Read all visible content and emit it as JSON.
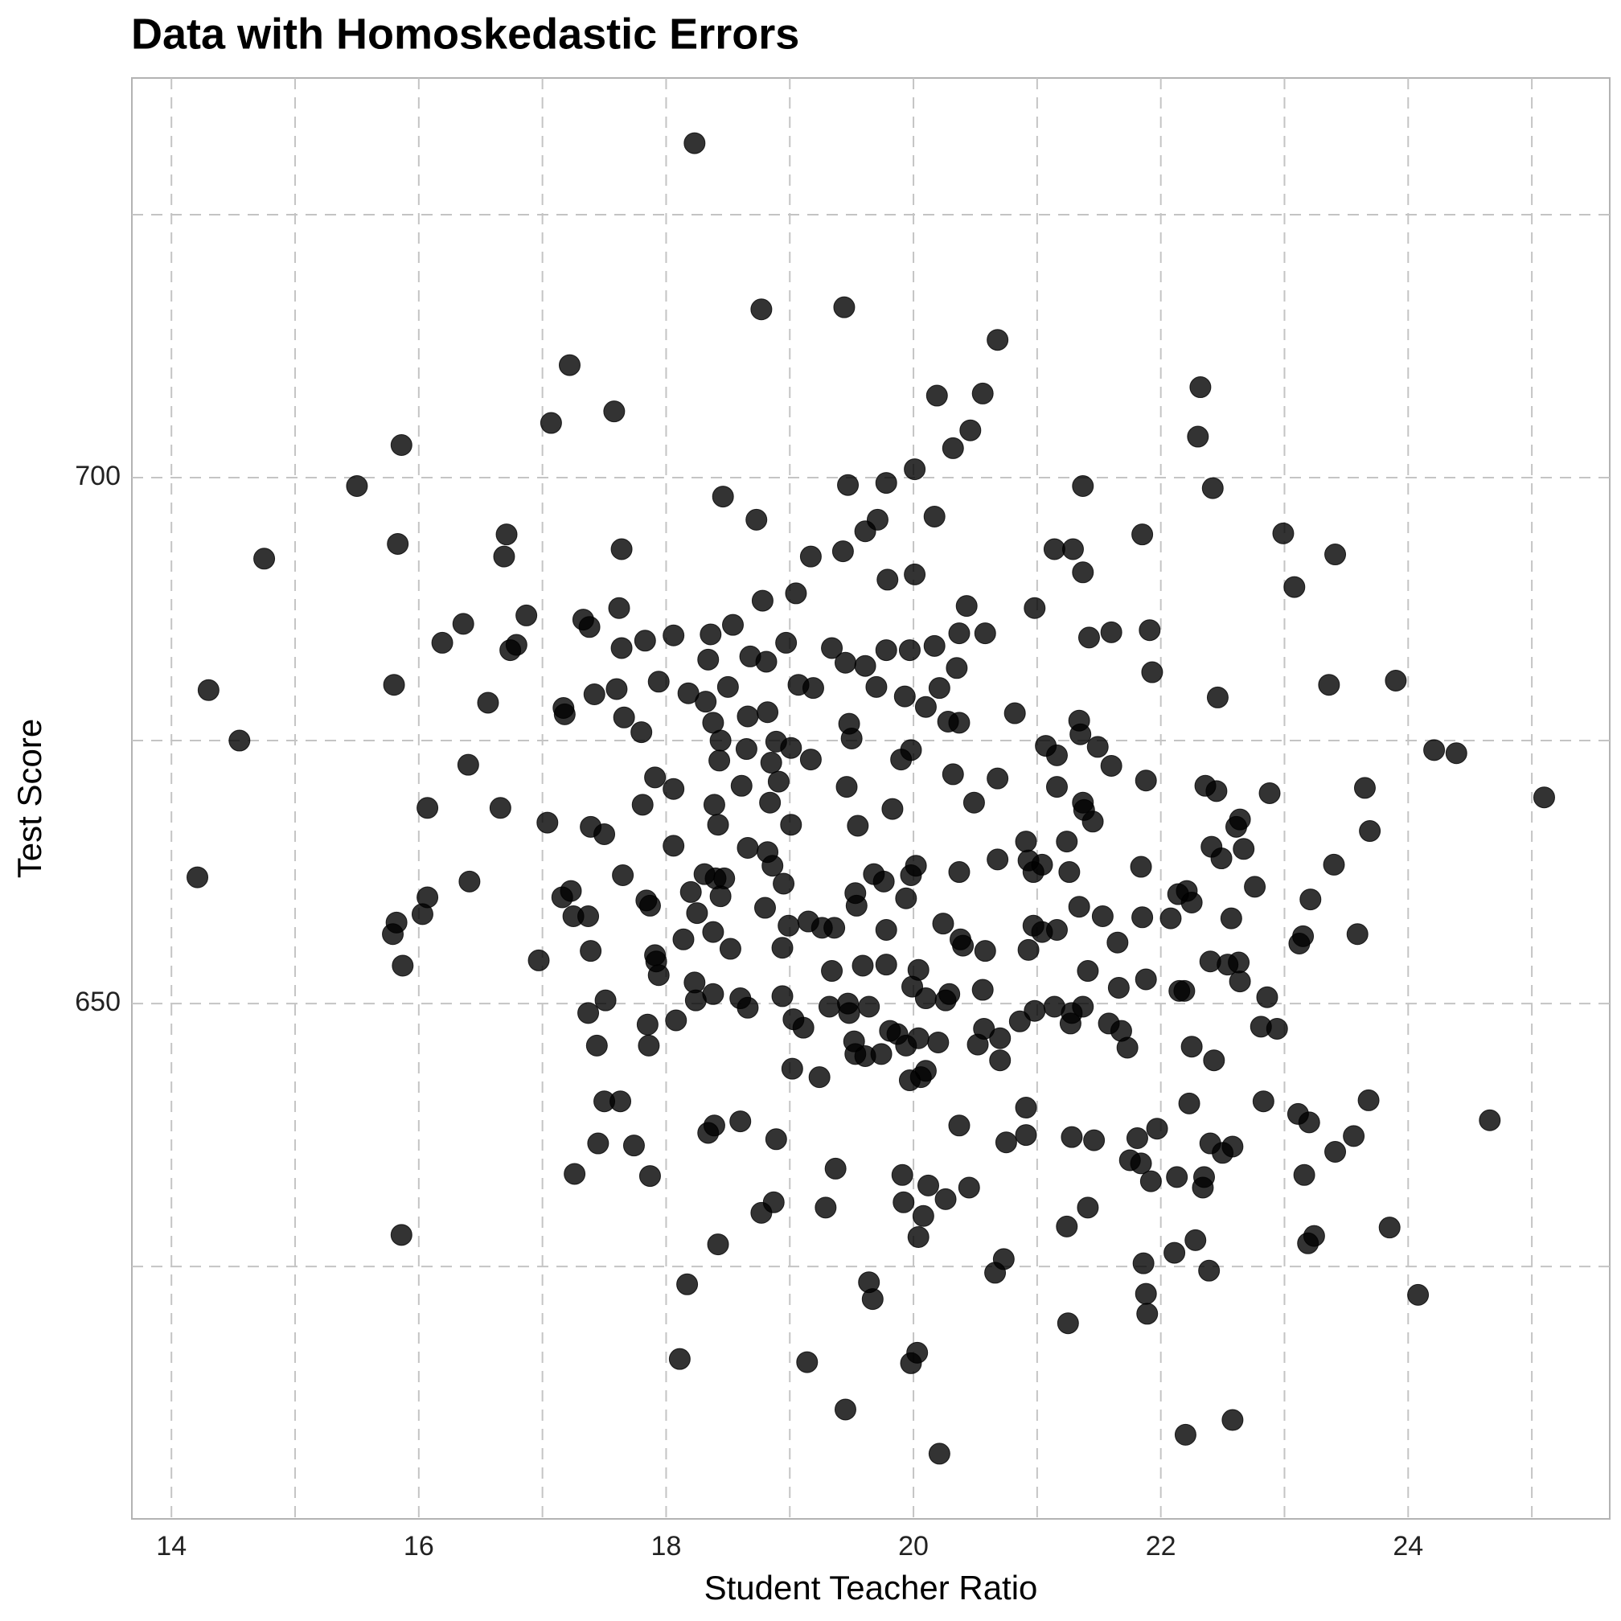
{
  "chart_data": {
    "type": "scatter",
    "title": "Data with Homoskedastic Errors",
    "x_label": "Student Teacher Ratio",
    "y_label": "Test Score",
    "color": "#000000",
    "opacity": 0.8,
    "grid": true,
    "xlim": [
      13.68,
      25.63
    ],
    "ylim": [
      601,
      738
    ],
    "xticks": [
      14,
      16,
      18,
      20,
      22,
      24
    ],
    "yticks": [
      650,
      700
    ],
    "x_minor_ticks": [
      15,
      17,
      19,
      21,
      23,
      25
    ],
    "y_minor_ticks": [
      625,
      675,
      725
    ],
    "x": [
      18.23,
      18.77,
      19.44,
      20.68,
      17.22,
      22.32,
      20.19,
      20.56,
      17.58,
      17.07,
      20.46,
      15.86,
      20.32,
      22.3,
      20.01,
      15.5,
      19.47,
      19.78,
      21.37,
      22.42,
      18.46,
      18.73,
      19.71,
      20.17,
      19.61,
      15.83,
      16.71,
      17.64,
      21.85,
      22.99,
      14.75,
      16.69,
      19.17,
      19.43,
      21.14,
      21.29,
      23.41,
      20.01,
      19.79,
      21.37,
      23.08,
      19.05,
      18.78,
      17.62,
      20.98,
      20.43,
      16.87,
      16.36,
      17.33,
      17.38,
      18.54,
      16.19,
      16.79,
      16.74,
      17.83,
      17.64,
      18.06,
      18.36,
      18.97,
      20.37,
      20.58,
      21.42,
      21.6,
      21.91,
      19.34,
      19.97,
      20.17,
      19.78,
      18.34,
      18.68,
      18.81,
      19.45,
      19.61,
      20.35,
      21.93,
      14.3,
      15.8,
      17.94,
      17.6,
      17.42,
      18.18,
      18.5,
      19.07,
      19.19,
      19.7,
      19.93,
      20.21,
      22.46,
      23.36,
      23.9,
      16.56,
      17.17,
      17.18,
      18.32,
      18.82,
      18.66,
      20.1,
      17.66,
      18.38,
      20.28,
      20.37,
      20.82,
      21.34,
      19.48,
      14.55,
      17.8,
      18.44,
      18.65,
      18.89,
      19.01,
      19.5,
      19.98,
      21.07,
      21.16,
      21.35,
      21.49,
      24.21,
      24.39,
      16.4,
      18.43,
      18.85,
      19.17,
      19.9,
      21.6,
      17.91,
      18.91,
      20.32,
      20.68,
      21.88,
      22.36,
      23.65,
      18.06,
      18.61,
      19.46,
      21.16,
      22.45,
      22.88,
      16.07,
      16.66,
      17.81,
      18.39,
      18.84,
      19.83,
      20.49,
      21.37,
      21.38,
      25.1,
      17.04,
      17.39,
      17.5,
      18.42,
      19.01,
      19.55,
      21.45,
      22.64,
      22.61,
      23.69,
      18.06,
      18.66,
      20.91,
      21.24,
      22.41,
      22.49,
      22.67,
      20.68,
      18.82,
      20.93,
      21.04,
      14.21,
      17.65,
      18.31,
      18.4,
      18.47,
      18.86,
      19.68,
      19.76,
      19.98,
      20.02,
      20.37,
      20.97,
      21.26,
      21.84,
      23.4,
      16.41,
      18.95,
      22.76,
      16.07,
      17.16,
      17.23,
      18.2,
      18.44,
      19.53,
      19.94,
      22.14,
      22.21,
      22.25,
      23.21,
      16.03,
      17.25,
      17.37,
      17.84,
      17.87,
      18.25,
      18.8,
      19.54,
      21.34,
      21.53,
      21.85,
      22.08,
      22.57,
      15.82,
      15.79,
      18.99,
      19.15,
      19.26,
      19.36,
      19.78,
      20.24,
      20.97,
      21.04,
      21.16,
      23.59,
      23.15,
      23.12,
      18.14,
      18.38,
      18.52,
      18.94,
      20.38,
      20.4,
      20.58,
      20.93,
      21.65,
      17.39,
      16.97,
      17.91,
      17.92,
      15.87,
      17.94,
      19.59,
      19.78,
      19.34,
      20.04,
      21.41,
      22.4,
      22.54,
      22.63,
      22.64,
      21.88,
      18.23,
      19.99,
      20.56,
      21.66,
      22.15,
      22.19,
      17.51,
      18.24,
      18.38,
      18.6,
      18.66,
      18.94,
      19.32,
      19.47,
      19.48,
      19.64,
      20.1,
      20.26,
      20.29,
      21.14,
      20.98,
      21.37,
      21.28,
      22.86,
      17.37,
      18.08,
      17.85,
      19.03,
      19.11,
      20.86,
      21.27,
      21.58,
      20.57,
      19.81,
      19.87,
      20.04,
      21.68,
      22.81,
      22.94,
      20.7,
      17.44,
      17.86,
      19.52,
      19.94,
      20.2,
      20.52,
      21.73,
      22.25,
      19.53,
      19.61,
      19.74,
      20.7,
      22.43,
      19.02,
      20.1,
      19.24,
      19.97,
      20.06,
      17.5,
      17.63,
      22.23,
      23.68,
      22.83,
      20.91,
      24.66,
      23.11,
      23.2,
      18.6,
      18.39,
      18.34,
      20.37,
      20.91,
      18.89,
      17.45,
      17.74,
      20.75,
      21.28,
      21.46,
      21.81,
      21.97,
      22.4,
      22.5,
      22.58,
      23.56,
      23.41,
      21.75,
      21.84,
      21.92,
      22.13,
      22.35,
      22.34,
      23.16,
      19.37,
      17.26,
      17.87,
      19.91,
      20.12,
      20.45,
      19.92,
      20.26,
      18.87,
      18.77,
      19.29,
      20.08,
      21.41,
      21.24,
      15.86,
      20.04,
      23.85,
      22.28,
      23.24,
      23.19,
      18.42,
      22.11,
      20.73,
      20.66,
      21.86,
      22.39,
      18.17,
      19.64,
      19.67,
      21.88,
      24.08,
      21.89,
      21.25,
      18.11,
      19.14,
      20.03,
      19.98,
      19.45,
      22.58,
      22.2,
      20.21
    ],
    "values": [
      731.8,
      716.0,
      716.2,
      713.1,
      710.7,
      708.6,
      707.8,
      708.0,
      706.3,
      705.2,
      704.5,
      703.1,
      702.8,
      703.9,
      700.8,
      699.2,
      699.3,
      699.5,
      699.2,
      699.0,
      698.2,
      696.0,
      696.0,
      696.3,
      694.9,
      693.7,
      694.6,
      693.2,
      694.6,
      694.7,
      692.3,
      692.5,
      692.5,
      693.0,
      693.2,
      693.2,
      692.7,
      690.8,
      690.3,
      691.0,
      689.6,
      689.0,
      688.3,
      687.6,
      687.6,
      687.8,
      686.9,
      686.1,
      686.5,
      685.8,
      686.0,
      684.3,
      684.1,
      683.6,
      684.5,
      683.8,
      685.0,
      685.1,
      684.3,
      685.2,
      685.2,
      684.8,
      685.3,
      685.5,
      683.8,
      683.6,
      684.0,
      683.6,
      682.7,
      683.0,
      682.5,
      682.4,
      682.1,
      681.9,
      681.5,
      679.8,
      680.3,
      680.6,
      679.9,
      679.4,
      679.5,
      680.1,
      680.3,
      680.0,
      680.1,
      679.2,
      680.0,
      679.1,
      680.3,
      680.7,
      678.6,
      678.1,
      677.5,
      678.7,
      677.7,
      677.3,
      678.2,
      677.2,
      676.7,
      676.8,
      676.7,
      677.6,
      676.9,
      676.6,
      675.0,
      675.8,
      675.0,
      674.2,
      674.9,
      674.3,
      675.2,
      674.1,
      674.5,
      673.6,
      675.6,
      674.4,
      674.1,
      673.8,
      672.7,
      673.1,
      672.9,
      673.2,
      673.2,
      672.6,
      671.5,
      671.1,
      671.8,
      671.4,
      671.2,
      670.7,
      670.5,
      670.4,
      670.7,
      670.6,
      670.6,
      670.2,
      670.0,
      668.6,
      668.6,
      668.9,
      668.9,
      669.1,
      668.5,
      669.1,
      669.1,
      668.4,
      669.6,
      667.2,
      666.8,
      666.1,
      667.0,
      667.0,
      666.9,
      667.3,
      667.5,
      666.8,
      666.4,
      665.0,
      664.8,
      665.4,
      665.4,
      664.9,
      663.8,
      664.7,
      663.7,
      664.4,
      663.6,
      663.2,
      662.0,
      662.2,
      662.3,
      661.9,
      661.9,
      663.1,
      662.3,
      661.6,
      662.2,
      663.1,
      662.5,
      662.5,
      662.5,
      663.0,
      663.2,
      661.6,
      661.4,
      661.1,
      660.1,
      660.1,
      660.7,
      660.6,
      660.2,
      660.5,
      660.0,
      660.4,
      660.7,
      659.6,
      659.9,
      658.5,
      658.3,
      658.3,
      659.8,
      659.3,
      658.6,
      659.1,
      659.3,
      659.2,
      658.3,
      658.2,
      658.1,
      658.1,
      657.7,
      656.6,
      657.4,
      657.8,
      657.2,
      657.2,
      657.0,
      657.6,
      657.4,
      656.8,
      657.0,
      656.6,
      656.4,
      655.7,
      656.1,
      656.8,
      655.2,
      655.3,
      656.1,
      655.5,
      655.0,
      655.1,
      655.8,
      655.0,
      654.1,
      654.6,
      654.0,
      653.6,
      652.7,
      653.6,
      653.7,
      653.1,
      653.2,
      653.1,
      654.0,
      653.7,
      653.9,
      652.1,
      652.3,
      652.0,
      651.6,
      651.3,
      651.5,
      651.2,
      651.2,
      650.3,
      650.3,
      650.9,
      650.5,
      649.6,
      650.7,
      649.7,
      650.0,
      649.1,
      649.7,
      650.5,
      650.3,
      650.9,
      649.7,
      649.3,
      649.7,
      649.1,
      650.6,
      649.1,
      648.4,
      648.0,
      648.5,
      647.7,
      648.3,
      648.1,
      648.1,
      647.6,
      647.4,
      647.1,
      646.7,
      647.4,
      647.8,
      647.6,
      646.7,
      646.0,
      646.0,
      646.4,
      646.0,
      646.3,
      646.1,
      645.8,
      645.9,
      645.2,
      645.0,
      645.2,
      644.6,
      644.6,
      643.8,
      643.6,
      643.0,
      642.7,
      643.0,
      640.7,
      640.7,
      640.5,
      640.8,
      640.7,
      640.1,
      638.9,
      639.5,
      638.7,
      638.8,
      638.4,
      637.7,
      638.4,
      637.5,
      637.1,
      636.7,
      636.5,
      636.8,
      637.3,
      637.0,
      637.2,
      638.1,
      636.7,
      635.8,
      636.4,
      637.4,
      635.9,
      635.1,
      634.8,
      633.1,
      633.5,
      633.5,
      632.5,
      633.7,
      634.3,
      633.8,
      633.6,
      633.7,
      632.7,
      632.5,
      631.1,
      631.4,
      631.1,
      630.1,
      630.6,
      629.8,
      630.6,
      628.8,
      628.0,
      627.8,
      628.7,
      627.5,
      627.9,
      627.2,
      627.1,
      626.3,
      625.7,
      624.4,
      625.3,
      624.6,
      623.3,
      623.5,
      621.9,
      622.4,
      622.3,
      620.5,
      619.6,
      616.2,
      615.9,
      616.8,
      615.8,
      611.4,
      610.4,
      609.0,
      607.2
    ]
  }
}
